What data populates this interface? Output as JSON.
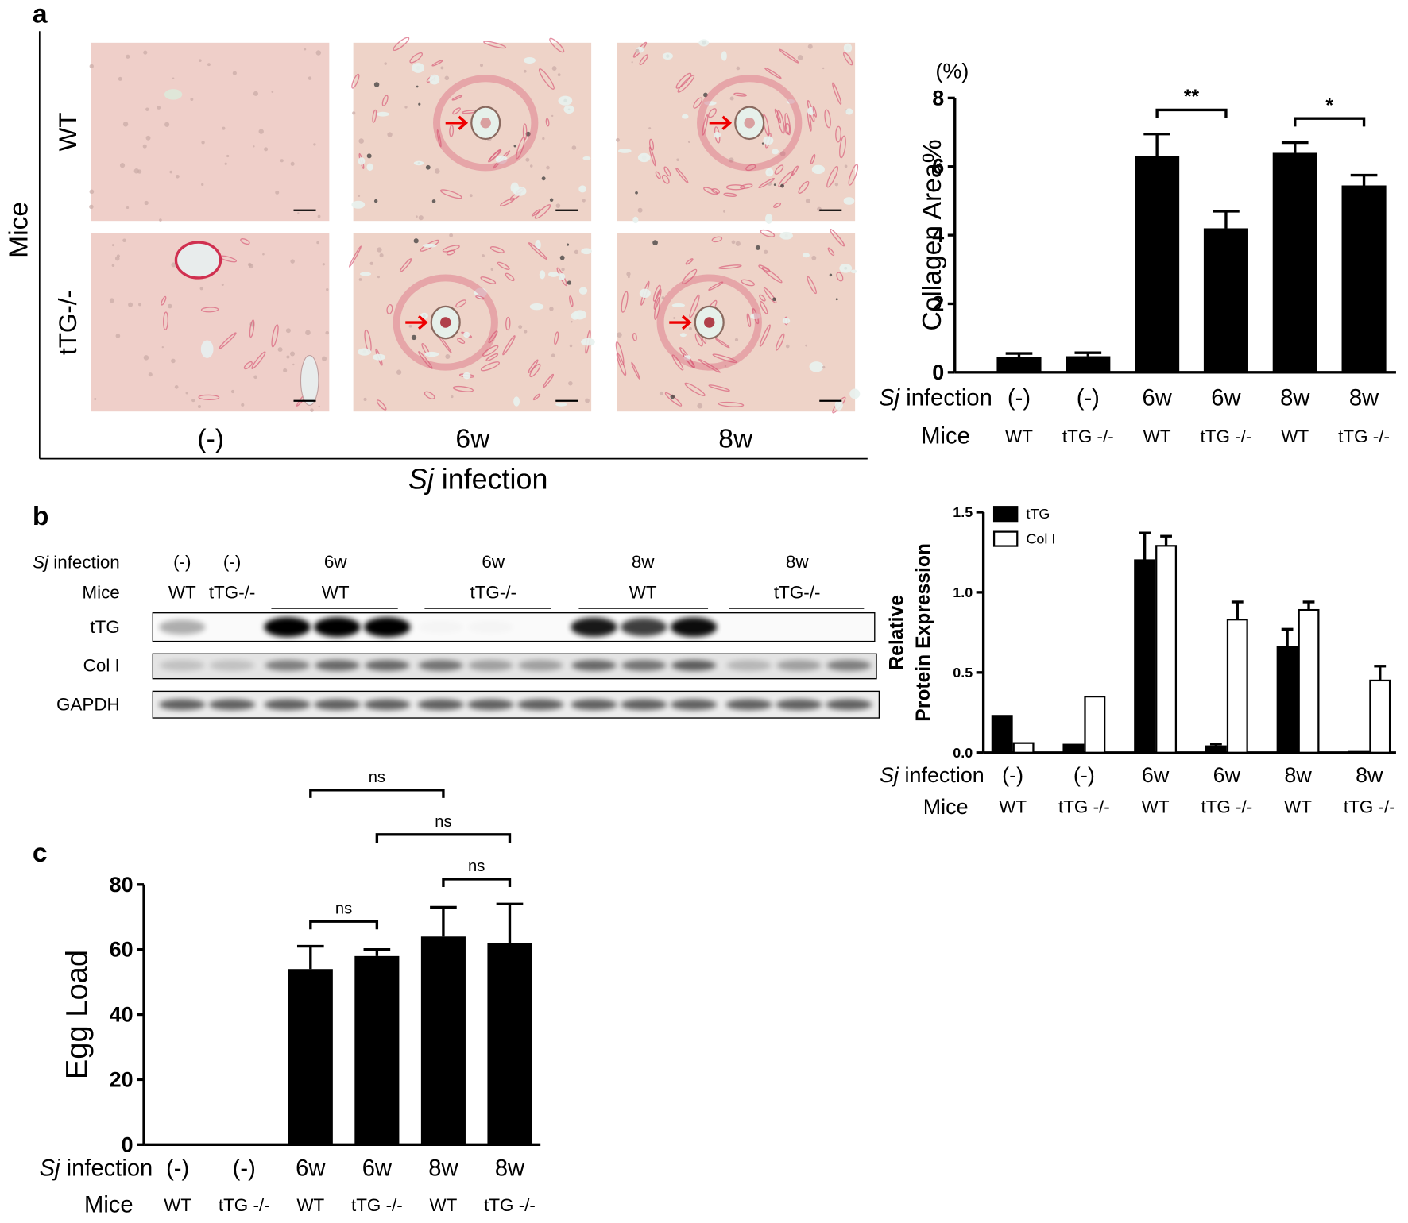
{
  "figure": {
    "panel_labels": [
      "a",
      "b",
      "c"
    ],
    "micrographs": {
      "y_title": "Mice",
      "rows": [
        "WT",
        "tTG-/-"
      ],
      "columns": [
        "(-)",
        "6w",
        "8w"
      ],
      "x_title": {
        "italic": "Sj",
        "text": "infection"
      }
    },
    "blot": {
      "infection_title": {
        "italic": "Sj",
        "text": "infection"
      },
      "mice_title": "Mice",
      "infection_labels": [
        "(-)",
        "(-)",
        "6w",
        "6w",
        "8w",
        "8w"
      ],
      "mice_labels": [
        "WT",
        "tTG-/-",
        "WT",
        "tTG-/-",
        "WT",
        "tTG-/-"
      ],
      "proteins": [
        "tTG",
        "Col I",
        "GAPDH"
      ]
    }
  },
  "chart_data": [
    {
      "type": "bar",
      "y_label": "Collagen Area%",
      "y_unit": "(%)",
      "category_title": {
        "italic": "Sj",
        "text": "infection"
      },
      "categories": [
        "(-)",
        "(-)",
        "6w",
        "6w",
        "8w",
        "8w"
      ],
      "subcategory_title": "Mice",
      "subcategories": [
        "WT",
        "tTG -/-",
        "WT",
        "tTG -/-",
        "WT",
        "tTG -/-"
      ],
      "values": [
        0.45,
        0.47,
        6.3,
        4.2,
        6.4,
        5.45
      ],
      "errors": [
        0.1,
        0.1,
        0.65,
        0.5,
        0.3,
        0.3
      ],
      "color": "#000000",
      "ylim": [
        0,
        8
      ],
      "yticks": [
        0,
        2,
        4,
        6,
        8
      ],
      "comparisons": [
        {
          "label": "**",
          "groups": [
            2,
            3
          ]
        },
        {
          "label": "*",
          "groups": [
            4,
            5
          ]
        }
      ]
    },
    {
      "type": "grouped_bar",
      "y_label": [
        "Relative",
        "Protein Expression"
      ],
      "category_title": {
        "italic": "Sj",
        "text": "infection"
      },
      "categories": [
        "(-)",
        "(-)",
        "6w",
        "6w",
        "8w",
        "8w"
      ],
      "subcategory_title": "Mice",
      "subcategories": [
        "WT",
        "tTG -/-",
        "WT",
        "tTG -/-",
        "WT",
        "tTG -/-"
      ],
      "series": [
        {
          "name": "tTG",
          "color": "#000000",
          "values": [
            0.23,
            0.05,
            1.2,
            0.04,
            0.66,
            0.005
          ],
          "errors": [
            null,
            null,
            0.17,
            0.015,
            0.11,
            null
          ]
        },
        {
          "name": "Col I",
          "color": "#ffffff",
          "values": [
            0.06,
            0.35,
            1.29,
            0.83,
            0.89,
            0.45
          ],
          "errors": [
            null,
            null,
            0.06,
            0.11,
            0.05,
            0.09
          ]
        }
      ],
      "legend": "upper left",
      "ylim": [
        0,
        1.5
      ],
      "yticks": [
        {
          "value": 0,
          "label": "0.0"
        },
        0.5,
        {
          "value": 1,
          "label": "1.0"
        },
        1.5
      ]
    },
    {
      "type": "bar",
      "y_label": "Egg Load",
      "category_title": {
        "italic": "Sj",
        "text": "infection"
      },
      "categories": [
        "(-)",
        "(-)",
        "6w",
        "6w",
        "8w",
        "8w"
      ],
      "subcategory_title": "Mice",
      "subcategories": [
        "WT",
        "tTG -/-",
        "WT",
        "tTG -/-",
        "WT",
        "tTG -/-"
      ],
      "values": [
        0,
        0,
        54,
        58,
        64,
        62
      ],
      "errors": [
        0,
        0,
        7,
        2,
        9,
        12
      ],
      "color": "#000000",
      "ylim": [
        0,
        80
      ],
      "yticks": [
        0,
        20,
        40,
        60,
        80
      ],
      "comparisons": [
        {
          "label": "ns",
          "groups": [
            2,
            3
          ]
        },
        {
          "label": "ns",
          "groups": [
            4,
            5
          ]
        },
        {
          "label": "ns",
          "groups": [
            3,
            5
          ]
        },
        {
          "label": "ns",
          "groups": [
            2,
            4
          ]
        }
      ]
    }
  ]
}
